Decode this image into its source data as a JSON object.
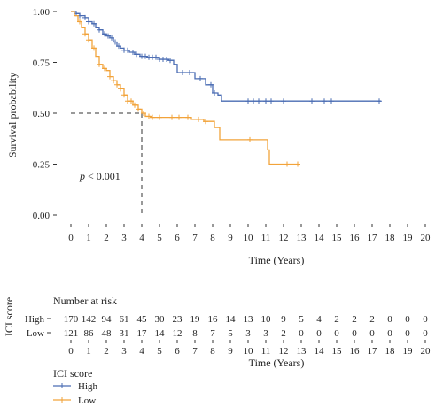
{
  "chart_data": {
    "type": "line",
    "subtype": "kaplan-meier",
    "ylabel": "Survival probability",
    "xlabel": "Time (Years)",
    "xlim": [
      0,
      20
    ],
    "ylim": [
      0,
      1
    ],
    "x_ticks": [
      "0",
      "1",
      "2",
      "3",
      "4",
      "5",
      "6",
      "7",
      "8",
      "9",
      "10",
      "11",
      "12",
      "13",
      "14",
      "15",
      "16",
      "17",
      "18",
      "19",
      "20"
    ],
    "y_ticks": [
      "0.00",
      "0.25",
      "0.50",
      "0.75",
      "1.00"
    ],
    "annotation": {
      "text": "< 0.001",
      "italic_prefix": "p"
    },
    "median_line": {
      "y": 0.5,
      "x": 4
    },
    "series": [
      {
        "name": "High",
        "color": "#4a6cb3",
        "steps": [
          [
            0,
            1.0
          ],
          [
            0.3,
            0.99
          ],
          [
            0.5,
            0.98
          ],
          [
            0.8,
            0.97
          ],
          [
            1.0,
            0.95
          ],
          [
            1.2,
            0.94
          ],
          [
            1.4,
            0.92
          ],
          [
            1.6,
            0.91
          ],
          [
            1.8,
            0.89
          ],
          [
            2.0,
            0.88
          ],
          [
            2.2,
            0.87
          ],
          [
            2.4,
            0.85
          ],
          [
            2.6,
            0.83
          ],
          [
            2.8,
            0.82
          ],
          [
            3.0,
            0.81
          ],
          [
            3.3,
            0.8
          ],
          [
            3.6,
            0.79
          ],
          [
            3.9,
            0.78
          ],
          [
            4.3,
            0.775
          ],
          [
            5.0,
            0.765
          ],
          [
            5.5,
            0.76
          ],
          [
            5.8,
            0.74
          ],
          [
            6.0,
            0.7
          ],
          [
            7.0,
            0.67
          ],
          [
            7.6,
            0.64
          ],
          [
            8.0,
            0.6
          ],
          [
            8.3,
            0.59
          ],
          [
            8.5,
            0.56
          ]
        ],
        "censor": [
          0.3,
          0.5,
          0.8,
          1.0,
          1.3,
          1.6,
          1.9,
          2.1,
          2.3,
          2.5,
          2.7,
          3.0,
          3.2,
          3.5,
          3.7,
          4.0,
          4.2,
          4.4,
          4.6,
          4.8,
          5.0,
          5.2,
          5.4,
          5.6,
          6.3,
          6.7,
          7.3,
          7.9,
          8.1,
          10.0,
          10.3,
          10.6,
          11.0,
          11.3,
          12.0,
          13.6,
          14.3,
          14.7,
          17.4
        ],
        "end_x": 17.5
      },
      {
        "name": "Low",
        "color": "#f2a33a",
        "steps": [
          [
            0,
            1.0
          ],
          [
            0.2,
            0.98
          ],
          [
            0.4,
            0.95
          ],
          [
            0.6,
            0.92
          ],
          [
            0.8,
            0.89
          ],
          [
            1.0,
            0.86
          ],
          [
            1.2,
            0.82
          ],
          [
            1.4,
            0.78
          ],
          [
            1.6,
            0.74
          ],
          [
            1.8,
            0.72
          ],
          [
            2.0,
            0.71
          ],
          [
            2.2,
            0.68
          ],
          [
            2.4,
            0.66
          ],
          [
            2.6,
            0.64
          ],
          [
            2.8,
            0.62
          ],
          [
            3.0,
            0.59
          ],
          [
            3.2,
            0.56
          ],
          [
            3.5,
            0.54
          ],
          [
            3.8,
            0.52
          ],
          [
            4.0,
            0.5
          ],
          [
            4.2,
            0.485
          ],
          [
            4.5,
            0.48
          ],
          [
            6.8,
            0.47
          ],
          [
            7.5,
            0.46
          ],
          [
            8.1,
            0.43
          ],
          [
            8.4,
            0.37
          ],
          [
            10.8,
            0.37
          ],
          [
            11.1,
            0.32
          ],
          [
            11.2,
            0.25
          ]
        ],
        "censor": [
          0.5,
          0.8,
          1.0,
          1.3,
          1.6,
          1.9,
          2.2,
          2.4,
          2.6,
          2.8,
          3.0,
          3.2,
          3.4,
          3.6,
          3.8,
          4.1,
          4.4,
          4.6,
          5.0,
          5.7,
          6.1,
          6.6,
          7.2,
          7.6,
          10.1,
          12.2,
          12.8
        ],
        "end_x": 12.8
      }
    ]
  },
  "risk_table": {
    "y_title": "ICI score",
    "header": "Number at risk",
    "xlabel": "Time (Years)",
    "rows": [
      {
        "label": "High",
        "values": [
          "170",
          "142",
          "94",
          "61",
          "45",
          "30",
          "23",
          "19",
          "16",
          "14",
          "13",
          "10",
          "9",
          "5",
          "4",
          "2",
          "2",
          "2",
          "0",
          "0",
          "0"
        ]
      },
      {
        "label": "Low",
        "values": [
          "121",
          "86",
          "48",
          "31",
          "17",
          "14",
          "12",
          "8",
          "7",
          "5",
          "3",
          "3",
          "2",
          "0",
          "0",
          "0",
          "0",
          "0",
          "0",
          "0",
          "0"
        ]
      }
    ]
  },
  "legend": {
    "title": "ICI score",
    "items": [
      "High",
      "Low"
    ]
  }
}
